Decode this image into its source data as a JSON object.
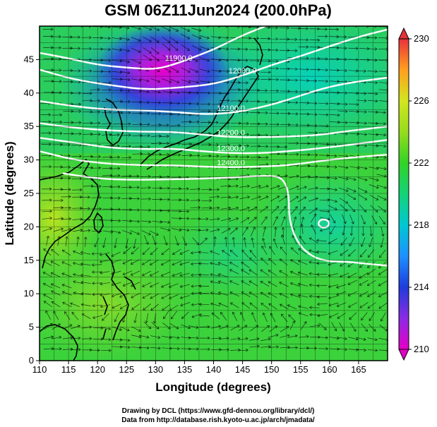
{
  "title": "GSM 06Z11Jun2024 (200.0hPa)",
  "xlabel": "Longitude (degrees)",
  "ylabel": "Latitude  (degrees)",
  "credits": [
    "Drawing by DCL (https://www.gfd-dennou.org/library/dcl/)",
    "Data from http://database.rish.kyoto-u.ac.jp/arch/jmadata/"
  ],
  "chart_data": {
    "type": "heatmap",
    "field": "temperature with streamlines and height contours",
    "x": {
      "range": [
        110,
        170
      ],
      "ticks": [
        110,
        115,
        120,
        125,
        130,
        135,
        140,
        145,
        150,
        155,
        160,
        165
      ]
    },
    "y": {
      "range": [
        0,
        50
      ],
      "ticks": [
        0,
        5,
        10,
        15,
        20,
        25,
        30,
        35,
        40,
        45
      ]
    },
    "grid": true,
    "colorbar": {
      "placement": "right",
      "range": [
        210,
        230
      ],
      "ticks": [
        210,
        214,
        218,
        222,
        226,
        230
      ],
      "stops": [
        {
          "value": 210,
          "color": "#e600c8"
        },
        {
          "value": 212,
          "color": "#8b2be2"
        },
        {
          "value": 214,
          "color": "#1e3cdc"
        },
        {
          "value": 216,
          "color": "#1e90ff"
        },
        {
          "value": 218,
          "color": "#00c8d2"
        },
        {
          "value": 220,
          "color": "#14d278"
        },
        {
          "value": 222,
          "color": "#32d228"
        },
        {
          "value": 224,
          "color": "#96dc1e"
        },
        {
          "value": 226,
          "color": "#d2e61e"
        },
        {
          "value": 228,
          "color": "#ffa01e"
        },
        {
          "value": 230,
          "color": "#e6323c"
        }
      ]
    },
    "contours": [
      {
        "label": "11900.0",
        "points": [
          [
            110,
            46
          ],
          [
            115,
            45.2
          ],
          [
            120,
            44.2
          ],
          [
            125,
            43.8
          ],
          [
            130,
            43.5
          ],
          [
            134,
            44.5
          ],
          [
            137,
            45.5
          ],
          [
            140,
            46.5
          ],
          [
            143,
            47.8
          ],
          [
            146,
            49
          ],
          [
            149,
            50
          ]
        ]
      },
      {
        "label": "12000.0",
        "points": [
          [
            110,
            43.5
          ],
          [
            116,
            42
          ],
          [
            122,
            41.2
          ],
          [
            128,
            40.5
          ],
          [
            134,
            40.8
          ],
          [
            140,
            41.3
          ],
          [
            145,
            42.6
          ],
          [
            150,
            44.2
          ],
          [
            155,
            45.5
          ],
          [
            160,
            47
          ],
          [
            165,
            48.4
          ],
          [
            170,
            49.5
          ]
        ]
      },
      {
        "label": "12100.0",
        "points": [
          [
            110,
            38.8
          ],
          [
            116,
            38
          ],
          [
            122,
            37.5
          ],
          [
            128,
            37.4
          ],
          [
            133,
            37.2
          ],
          [
            138,
            36.8
          ],
          [
            143,
            37
          ],
          [
            148,
            37.8
          ],
          [
            153,
            39
          ],
          [
            158,
            40.5
          ],
          [
            163,
            41.5
          ],
          [
            170,
            42.3
          ]
        ]
      },
      {
        "label": "12200.0",
        "points": [
          [
            110,
            35.5
          ],
          [
            116,
            34.8
          ],
          [
            122,
            34.4
          ],
          [
            128,
            34.2
          ],
          [
            133,
            34.2
          ],
          [
            138,
            33.8
          ],
          [
            143,
            33.4
          ],
          [
            148,
            33.4
          ],
          [
            153,
            33.5
          ],
          [
            158,
            33.7
          ],
          [
            163,
            34.3
          ],
          [
            170,
            35
          ]
        ]
      },
      {
        "label": "12300.0",
        "points": [
          [
            110,
            33.3
          ],
          [
            116,
            32.6
          ],
          [
            122,
            31.8
          ],
          [
            128,
            31.6
          ],
          [
            133,
            31.7
          ],
          [
            138,
            31.3
          ],
          [
            143,
            31
          ],
          [
            148,
            31
          ],
          [
            153,
            31.3
          ],
          [
            158,
            31.7
          ],
          [
            163,
            32.2
          ],
          [
            170,
            33
          ]
        ]
      },
      {
        "label": "12400.0",
        "points": [
          [
            110,
            31.3
          ],
          [
            116,
            30
          ],
          [
            122,
            29.4
          ],
          [
            128,
            29.2
          ],
          [
            133,
            29.2
          ],
          [
            138,
            29
          ],
          [
            143,
            28.9
          ],
          [
            148,
            29
          ],
          [
            153,
            29.2
          ],
          [
            158,
            29.8
          ],
          [
            163,
            30.3
          ],
          [
            170,
            30.8
          ]
        ]
      },
      {
        "label": "",
        "points": [
          [
            114,
            28
          ],
          [
            120,
            27.2
          ],
          [
            126,
            27
          ],
          [
            132,
            27.1
          ],
          [
            138,
            27.2
          ],
          [
            144,
            27.4
          ],
          [
            150,
            27.7
          ],
          [
            152,
            27.2
          ],
          [
            153,
            25
          ],
          [
            153,
            21
          ],
          [
            154.5,
            17.5
          ],
          [
            157,
            15.5
          ],
          [
            160,
            14.8
          ],
          [
            163,
            14.8
          ],
          [
            166,
            14.5
          ],
          [
            170,
            14.2
          ]
        ]
      }
    ],
    "closed_contours": [
      {
        "label": "",
        "cx": 159,
        "cy": 20.5,
        "rx": 0.9,
        "ry": 0.6
      }
    ]
  }
}
